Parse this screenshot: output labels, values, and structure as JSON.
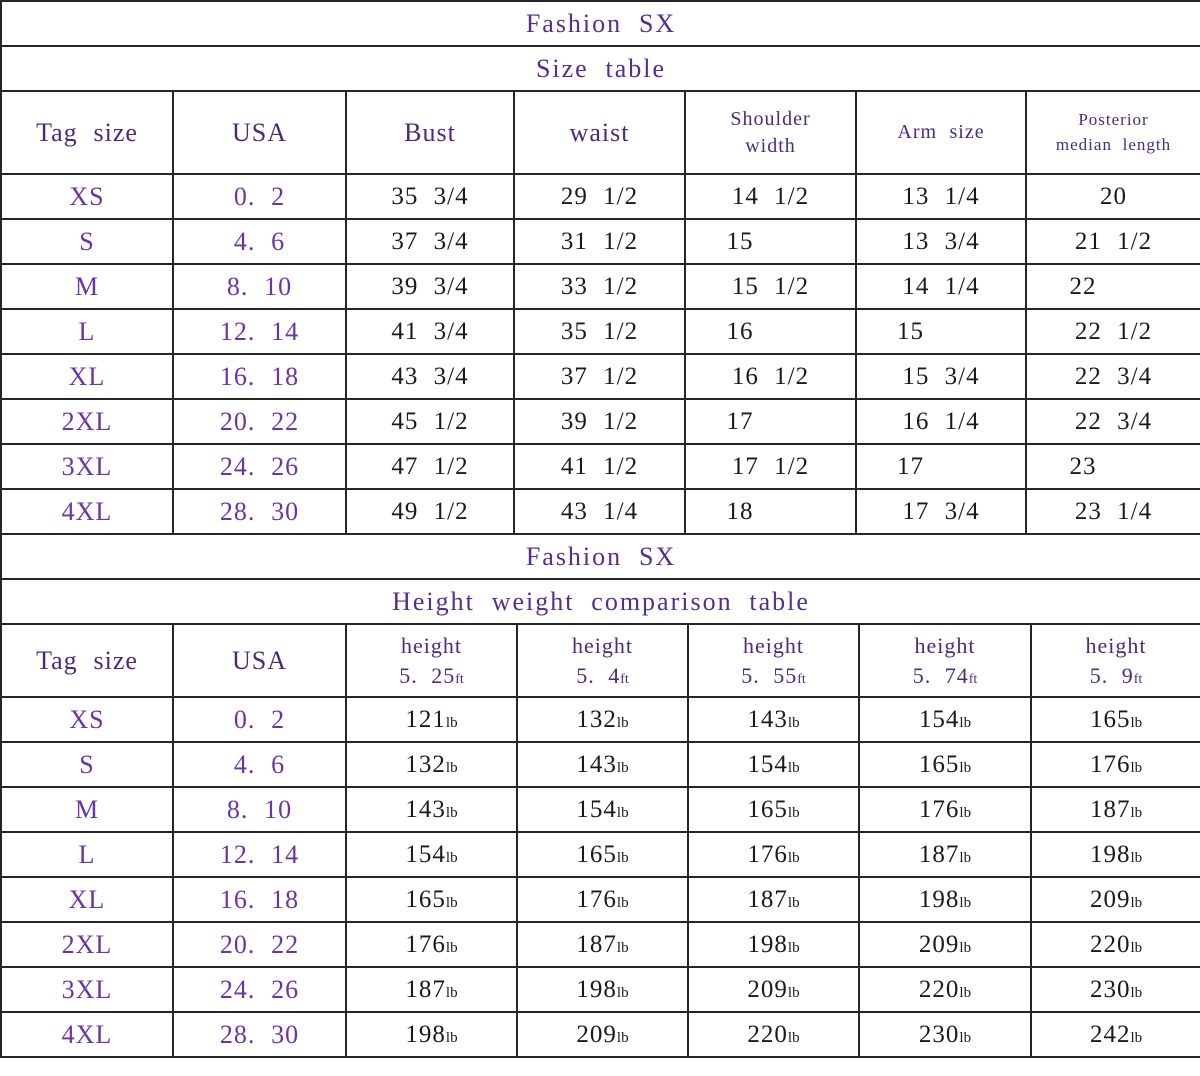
{
  "colors": {
    "purple_title": "#562d90",
    "purple_header": "#4b2a7e",
    "purple_data": "#6a34a6",
    "black_text": "#1a1a1a",
    "border": "#262626",
    "background": "#ffffff"
  },
  "size_table": {
    "brand": "Fashion SX",
    "title": "Size table",
    "columns": [
      "Tag size",
      "USA",
      "Bust",
      "waist",
      "Shoulder\nwidth",
      "Arm size",
      "Posterior\nmedian length"
    ],
    "rows": [
      [
        "XS",
        "0. 2",
        "35 3/4",
        "29 1/2",
        "14 1/2",
        "13 1/4",
        "20"
      ],
      [
        "S",
        "4. 6",
        "37 3/4",
        "31 1/2",
        "15    ",
        "13 3/4",
        "21 1/2"
      ],
      [
        "M",
        "8. 10",
        "39 3/4",
        "33 1/2",
        "15 1/2",
        "14 1/4",
        "22    "
      ],
      [
        "L",
        "12. 14",
        "41 3/4",
        "35 1/2",
        "16    ",
        "15    ",
        "22 1/2"
      ],
      [
        "XL",
        "16. 18",
        "43 3/4",
        "37 1/2",
        "16 1/2",
        "15 3/4",
        "22 3/4"
      ],
      [
        "2XL",
        "20. 22",
        "45 1/2",
        "39 1/2",
        "17    ",
        "16 1/4",
        "22 3/4"
      ],
      [
        "3XL",
        "24. 26",
        "47 1/2",
        "41 1/2",
        "17 1/2",
        "17    ",
        "23    "
      ],
      [
        "4XL",
        "28. 30",
        "49 1/2",
        "43 1/4",
        "18    ",
        "17 3/4",
        "23 1/4"
      ]
    ]
  },
  "height_weight_table": {
    "brand": "Fashion SX",
    "title": "Height weight comparison table",
    "tag_col": "Tag size",
    "usa_col": "USA",
    "height_cols": [
      {
        "label": "height",
        "value": "5. 25",
        "unit": "ft"
      },
      {
        "label": "height",
        "value": "5. 4",
        "unit": "ft"
      },
      {
        "label": "height",
        "value": "5. 55",
        "unit": "ft"
      },
      {
        "label": "height",
        "value": "5. 74",
        "unit": "ft"
      },
      {
        "label": "height",
        "value": "5. 9",
        "unit": "ft"
      }
    ],
    "weight_unit": "lb",
    "rows": [
      {
        "tag": "XS",
        "usa": "0. 2",
        "weights": [
          "121",
          "132",
          "143",
          "154",
          "165"
        ]
      },
      {
        "tag": "S",
        "usa": "4. 6",
        "weights": [
          "132",
          "143",
          "154",
          "165",
          "176"
        ]
      },
      {
        "tag": "M",
        "usa": "8. 10",
        "weights": [
          "143",
          "154",
          "165",
          "176",
          "187"
        ]
      },
      {
        "tag": "L",
        "usa": "12. 14",
        "weights": [
          "154",
          "165",
          "176",
          "187",
          "198"
        ]
      },
      {
        "tag": "XL",
        "usa": "16. 18",
        "weights": [
          "165",
          "176",
          "187",
          "198",
          "209"
        ]
      },
      {
        "tag": "2XL",
        "usa": "20. 22",
        "weights": [
          "176",
          "187",
          "198",
          "209",
          "220"
        ]
      },
      {
        "tag": "3XL",
        "usa": "24. 26",
        "weights": [
          "187",
          "198",
          "209",
          "220",
          "230"
        ]
      },
      {
        "tag": "4XL",
        "usa": "28. 30",
        "weights": [
          "198",
          "209",
          "220",
          "230",
          "242"
        ]
      }
    ]
  }
}
